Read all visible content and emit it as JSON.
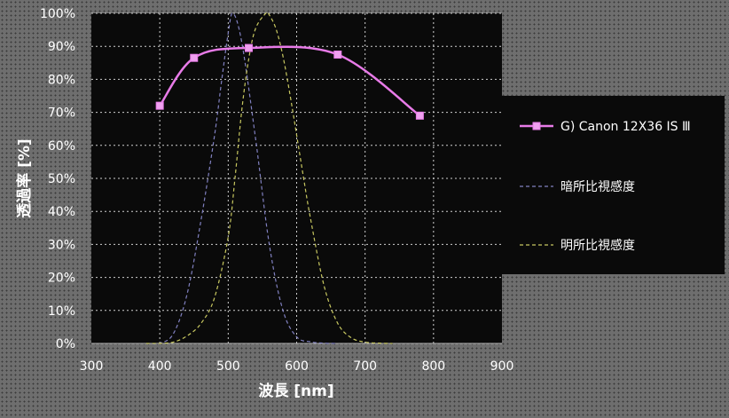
{
  "chart_data": {
    "type": "line",
    "title": "",
    "xlabel": "波長 [nm]",
    "ylabel": "透過率 [%]",
    "xlim": [
      300,
      900
    ],
    "ylim": [
      0,
      100
    ],
    "x_ticks": [
      "300",
      "400",
      "500",
      "600",
      "700",
      "800",
      "900"
    ],
    "y_ticks": [
      "0%",
      "10%",
      "20%",
      "30%",
      "40%",
      "50%",
      "60%",
      "70%",
      "80%",
      "90%",
      "100%"
    ],
    "grid": true,
    "legend_position": "right",
    "series": [
      {
        "name": "G) Canon 12X36 IS Ⅲ",
        "color": "#e87be8",
        "style": "solid-markers",
        "x": [
          400,
          450,
          530,
          660,
          780
        ],
        "y": [
          72,
          86.5,
          89.5,
          87.5,
          69
        ]
      },
      {
        "name": "暗所比視感度",
        "color": "#8080c0",
        "style": "dashed",
        "x": [
          380,
          400,
          420,
          440,
          460,
          480,
          490,
          500,
          507,
          520,
          540,
          560,
          580,
          600,
          620,
          640,
          660
        ],
        "y": [
          0,
          0.1,
          3,
          15,
          37,
          63,
          79,
          94,
          100,
          91,
          62,
          30,
          10,
          2,
          0.5,
          0.1,
          0
        ]
      },
      {
        "name": "明所比視感度",
        "color": "#c8c860",
        "style": "dashed",
        "x": [
          380,
          400,
          420,
          440,
          460,
          480,
          500,
          510,
          520,
          530,
          540,
          555,
          560,
          570,
          580,
          590,
          600,
          610,
          620,
          640,
          660,
          680,
          700,
          720,
          740
        ],
        "y": [
          0,
          0.04,
          0.4,
          2.3,
          6,
          13.9,
          32.3,
          50.3,
          71,
          86.2,
          95.4,
          100,
          99.5,
          95.2,
          87,
          75.7,
          63.1,
          50.3,
          38.1,
          17.5,
          6.1,
          1.7,
          0.4,
          0.1,
          0
        ]
      }
    ]
  }
}
